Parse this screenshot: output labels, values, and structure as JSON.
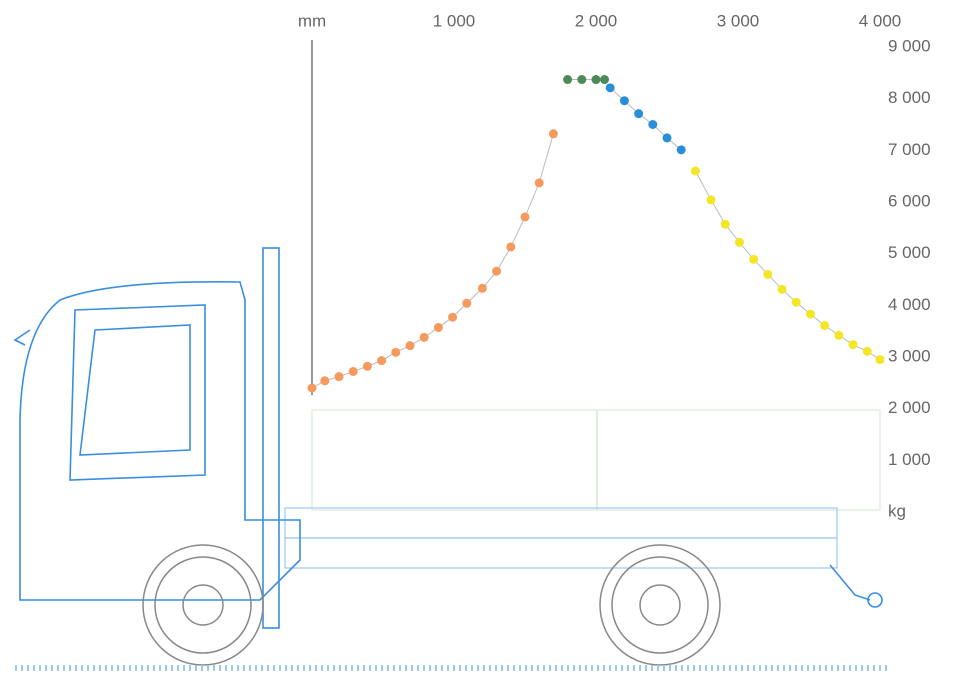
{
  "chart_data": {
    "type": "scatter",
    "xlim": [
      0,
      4000
    ],
    "xticks": [
      {
        "value": 0,
        "label": "mm"
      },
      {
        "value": 1000,
        "label": "1 000"
      },
      {
        "value": 2000,
        "label": "2 000"
      },
      {
        "value": 3000,
        "label": "3 000"
      },
      {
        "value": 4000,
        "label": "4 000"
      }
    ],
    "ylim": [
      0,
      9000
    ],
    "yticks": [
      {
        "value": 0,
        "label": "kg"
      },
      {
        "value": 1000,
        "label": "1 000"
      },
      {
        "value": 2000,
        "label": "2 000"
      },
      {
        "value": 3000,
        "label": "3 000"
      },
      {
        "value": 4000,
        "label": "4 000"
      },
      {
        "value": 5000,
        "label": "5 000"
      },
      {
        "value": 6000,
        "label": "6 000"
      },
      {
        "value": 7000,
        "label": "7 000"
      },
      {
        "value": 8000,
        "label": "8 000"
      },
      {
        "value": 9000,
        "label": "9 000"
      }
    ],
    "series": [
      {
        "color": "#f59a5c",
        "x": [
          0,
          90,
          190,
          290,
          390,
          490,
          590,
          690,
          790,
          890,
          990,
          1090,
          1200,
          1300,
          1400,
          1500,
          1600,
          1700
        ],
        "values": [
          2400,
          2540,
          2620,
          2720,
          2820,
          2930,
          3090,
          3220,
          3380,
          3570,
          3770,
          4040,
          4330,
          4660,
          5130,
          5710,
          6370,
          7320
        ]
      },
      {
        "color": "#4e8a57",
        "x": [
          1800,
          1900,
          2000,
          2060
        ],
        "values": [
          8370,
          8370,
          8370,
          8370
        ]
      },
      {
        "color": "#2a8fd8",
        "x": [
          2100,
          2200,
          2300,
          2400,
          2500,
          2600
        ],
        "values": [
          8210,
          7960,
          7710,
          7500,
          7240,
          7010
        ]
      },
      {
        "color": "#f2e626",
        "x": [
          2700,
          2810,
          2910,
          3010,
          3110,
          3210,
          3310,
          3410,
          3510,
          3610,
          3710,
          3810,
          3910,
          4000
        ],
        "values": [
          6600,
          6040,
          5570,
          5220,
          4890,
          4600,
          4310,
          4060,
          3830,
          3610,
          3420,
          3240,
          3110,
          2950
        ]
      }
    ]
  }
}
